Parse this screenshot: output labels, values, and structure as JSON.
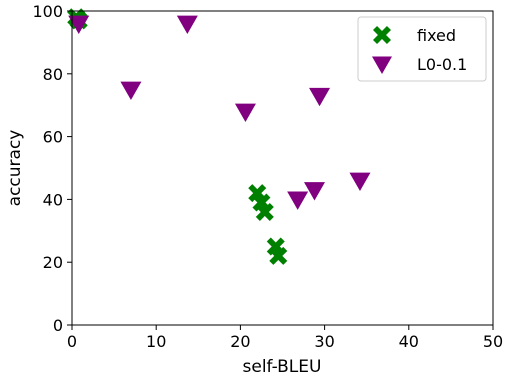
{
  "chart_data": {
    "type": "scatter",
    "xlabel": "self-BLEU",
    "ylabel": "accuracy",
    "xlim": [
      0,
      50
    ],
    "ylim": [
      0,
      100
    ],
    "xticks": [
      "0",
      "10",
      "20",
      "30",
      "40",
      "50"
    ],
    "yticks": [
      "0",
      "20",
      "40",
      "60",
      "80",
      "100"
    ],
    "grid": false,
    "legend_position": "top-right",
    "series": [
      {
        "name": "fixed",
        "marker": "X",
        "color": "#008000",
        "points": [
          {
            "x": 0.5,
            "y": 98
          },
          {
            "x": 0.8,
            "y": 97
          },
          {
            "x": 22.0,
            "y": 42
          },
          {
            "x": 22.5,
            "y": 39
          },
          {
            "x": 22.9,
            "y": 36
          },
          {
            "x": 24.2,
            "y": 25
          },
          {
            "x": 24.5,
            "y": 22
          }
        ]
      },
      {
        "name": "L0-0.1",
        "marker": "triangle-down",
        "color": "#800080",
        "points": [
          {
            "x": 0.8,
            "y": 96
          },
          {
            "x": 7.0,
            "y": 75
          },
          {
            "x": 13.7,
            "y": 96
          },
          {
            "x": 20.6,
            "y": 68
          },
          {
            "x": 26.8,
            "y": 40
          },
          {
            "x": 28.8,
            "y": 43
          },
          {
            "x": 29.4,
            "y": 73
          },
          {
            "x": 34.2,
            "y": 46
          }
        ]
      }
    ]
  }
}
